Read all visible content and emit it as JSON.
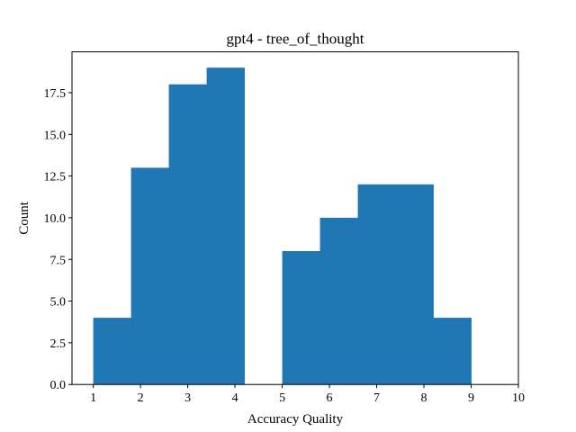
{
  "chart_data": {
    "type": "bar",
    "title": "gpt4 - tree_of_thought",
    "xlabel": "Accuracy Quality",
    "ylabel": "Count",
    "xlim": [
      0.55,
      10.0
    ],
    "ylim": [
      0,
      19.95
    ],
    "xticks": [
      1,
      2,
      3,
      4,
      5,
      6,
      7,
      8,
      9,
      10
    ],
    "xtick_labels": [
      "1",
      "2",
      "3",
      "4",
      "5",
      "6",
      "7",
      "8",
      "9",
      "10"
    ],
    "yticks": [
      0,
      2.5,
      5,
      7.5,
      10,
      12.5,
      15,
      17.5
    ],
    "ytick_labels": [
      "0.0",
      "2.5",
      "5.0",
      "7.5",
      "10.0",
      "12.5",
      "15.0",
      "17.5"
    ],
    "grid": false,
    "bar_color": "#1f77b4",
    "bins": [
      {
        "start": 1.0,
        "end": 1.8,
        "count": 4
      },
      {
        "start": 1.8,
        "end": 2.6,
        "count": 13
      },
      {
        "start": 2.6,
        "end": 3.4,
        "count": 18
      },
      {
        "start": 3.4,
        "end": 4.2,
        "count": 19
      },
      {
        "start": 4.2,
        "end": 5.0,
        "count": 0
      },
      {
        "start": 5.0,
        "end": 5.8,
        "count": 8
      },
      {
        "start": 5.8,
        "end": 6.6,
        "count": 10
      },
      {
        "start": 6.6,
        "end": 7.4,
        "count": 12
      },
      {
        "start": 7.4,
        "end": 8.2,
        "count": 12
      },
      {
        "start": 8.2,
        "end": 9.0,
        "count": 4
      }
    ]
  }
}
